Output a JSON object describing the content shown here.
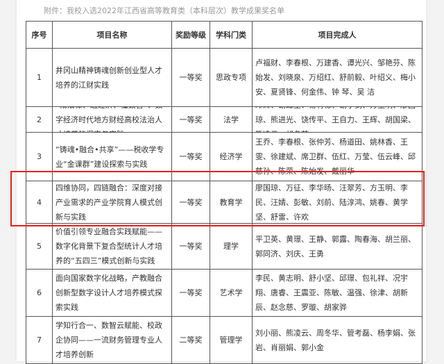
{
  "caption": "附件：我校入选2022年江西省高等教育类（本科层次）教学成果奖名单",
  "headers": [
    "序号",
    "项目名称",
    "奖励等级",
    "学科门类",
    "项目完成人"
  ],
  "rows": [
    {
      "no": "1",
      "name": "井冈山精神铸魂创新创业型人才培养的江财实践",
      "level": "一等奖",
      "category": "思政专项",
      "people": "卢福财、李春根、万建香、谭光兴、邹艳芬、陈始发、刘晓泉、万绍红、舒前毅、叶绍义、梅小安、夏贤锋、何金伟、钟 琴、吴 洁"
    },
    {
      "no": "2",
      "name": "“精法律、通经济、懂数智”：数字经济时代地方财经高校法治人才培养的探索与实践",
      "level": "一等奖",
      "category": "法学",
      "people": "邓辉、谢红星、易有禄、谢小剑、方玉明、廖国琼、熊进光、饶传平、王自力、王辉、胡国梁、熊凌云、胡冬萍"
    },
    {
      "no": "3",
      "name": "“铸魂•融合•共享”——税收学专业“金课群”建设探索与实践",
      "level": "一等奖",
      "category": "经济学",
      "people": "王乔、李春根、张仲芳、杨道田、姚林香、王雯、徐建斌、席卫群、伍红、万莹、伍云峰、邱慈孙、陈荣、陈始发、戴丽华"
    },
    {
      "no": "4",
      "name": "四维协同，四链融合：深度对接产业需求的产业学院育人模式创新与实践",
      "level": "一等奖",
      "category": "教育学",
      "people": "廖国琼、万征、李华旸、汪翠芳、方玉明、李民、汪婧、彭敏、刘前、陆淳鸿、姚春、黄学坚、舒雷、许欢"
    },
    {
      "no": "5",
      "name": "价值引领专业融合实践赋能——数字化背景下复合型统计人才培养的“五四三”模式创新与实践",
      "level": "一等奖",
      "category": "理学",
      "people": "平卫英、黄璟、王静、郭露、陶春海、胡兰丽、郭同济、刘庆、王勇"
    },
    {
      "no": "6",
      "name": "面向国家数字化战略，产教融合创新型数字设计人才培养模式探索实践",
      "level": "一等奖",
      "category": "艺术学",
      "people": "李民、黄志明、舒小坚、邱璟、包礼祥、况宇翔、唐睿、王震亚、陈敏、温强、徐津、胡新辰、赵念慈、罗璇、胡家骅"
    },
    {
      "no": "7",
      "name": "学知行合一、数智云赋能、校政企协同——一流财务管理专业人才培养创新",
      "level": "二等奖",
      "category": "管理学",
      "people": "刘小丽、熊凌云、周冬华、管考磊、杨李娟、张岩、肖丽娟、郭小金"
    }
  ],
  "highlight_color": "#e81c1c"
}
